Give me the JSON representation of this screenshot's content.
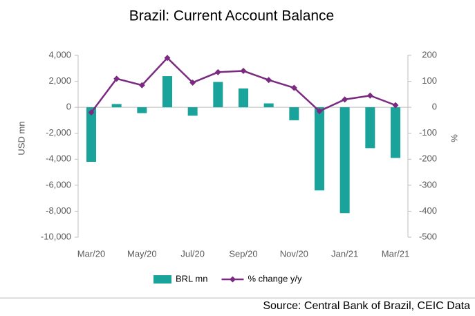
{
  "chart_data": {
    "type": "bar-line",
    "title": "Brazil: Current Account Balance",
    "y_label": "USD mn",
    "y2_label": "%",
    "source": "Source: Central Bank of Brazil, CEIC Data",
    "categories": [
      "Mar/20",
      null,
      "May/20",
      null,
      "Jul/20",
      null,
      "Sep/20",
      null,
      "Nov/20",
      null,
      "Jan/21",
      null,
      "Mar/21"
    ],
    "series": [
      {
        "name": "BRL mn",
        "type": "bar",
        "color": "#1aa39a",
        "values": [
          -4200,
          250,
          -450,
          2400,
          -650,
          1950,
          1450,
          300,
          -1000,
          -6400,
          -8150,
          -3150,
          -3900
        ]
      },
      {
        "name": "% change y/y",
        "type": "line",
        "axis": "y2",
        "color": "#7b2a82",
        "values": [
          -20,
          110,
          85,
          190,
          95,
          135,
          140,
          105,
          75,
          -15,
          30,
          45,
          8
        ]
      }
    ],
    "ylim": [
      -10000,
      4000
    ],
    "yticks": [
      {
        "value": -10000,
        "label": "-10,000"
      },
      {
        "value": -8000,
        "label": "-8,000"
      },
      {
        "value": -6000,
        "label": "-6,000"
      },
      {
        "value": -4000,
        "label": "-4,000"
      },
      {
        "value": -2000,
        "label": "-2,000"
      },
      0,
      {
        "value": 2000,
        "label": "2,000"
      },
      {
        "value": 4000,
        "label": "4,000"
      }
    ],
    "y2lim": [
      -500,
      200
    ],
    "y2ticks": [
      -500,
      -400,
      -300,
      -200,
      -100,
      0,
      100,
      200
    ],
    "legend": "bottom"
  }
}
